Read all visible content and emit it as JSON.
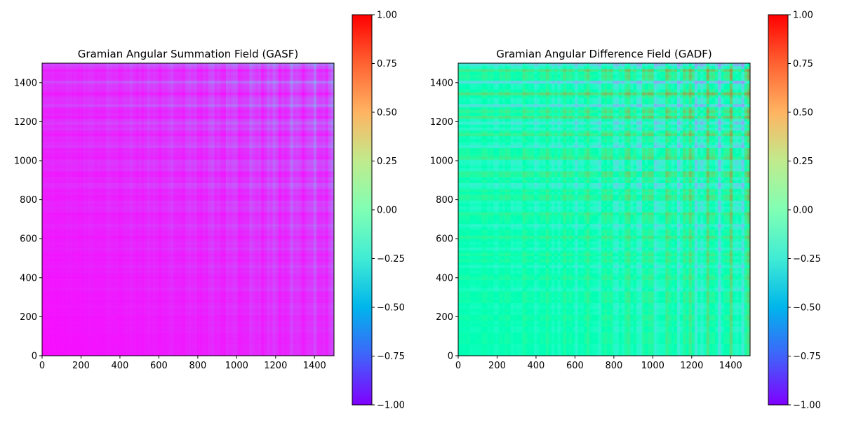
{
  "chart_data": [
    {
      "type": "heatmap",
      "title": "Gramian Angular Summation Field (GASF)",
      "xlabel": "",
      "ylabel": "",
      "xlim": [
        0,
        1500
      ],
      "ylim": [
        0,
        1500
      ],
      "xticks": [
        0,
        200,
        400,
        600,
        800,
        1000,
        1200,
        1400
      ],
      "yticks": [
        0,
        200,
        400,
        600,
        800,
        1000,
        1200,
        1400
      ],
      "colormap": "rainbow",
      "colorbar": {
        "range": [
          -1.0,
          1.0
        ],
        "ticks": [
          -1.0,
          -0.75,
          -0.5,
          -0.25,
          0.0,
          0.25,
          0.5,
          0.75,
          1.0
        ],
        "tick_labels": [
          "−1.00",
          "−0.75",
          "−0.50",
          "−0.25",
          "0.00",
          "0.25",
          "0.50",
          "0.75",
          "1.00"
        ]
      },
      "value_range_visible": [
        -1.0,
        -0.45
      ],
      "grid": false
    },
    {
      "type": "heatmap",
      "title": "Gramian Angular Difference Field (GADF)",
      "xlabel": "",
      "ylabel": "",
      "xlim": [
        0,
        1500
      ],
      "ylim": [
        0,
        1500
      ],
      "xticks": [
        0,
        200,
        400,
        600,
        800,
        1000,
        1200,
        1400
      ],
      "yticks": [
        0,
        200,
        400,
        600,
        800,
        1000,
        1200,
        1400
      ],
      "colormap": "rainbow",
      "colorbar": {
        "range": [
          -1.0,
          1.0
        ],
        "ticks": [
          -1.0,
          -0.75,
          -0.5,
          -0.25,
          0.0,
          0.25,
          0.5,
          0.75,
          1.0
        ],
        "tick_labels": [
          "−1.00",
          "−0.75",
          "−0.50",
          "−0.25",
          "0.00",
          "0.25",
          "0.50",
          "0.75",
          "1.00"
        ]
      },
      "value_range_visible": [
        -0.55,
        0.75
      ],
      "grid": false
    }
  ]
}
